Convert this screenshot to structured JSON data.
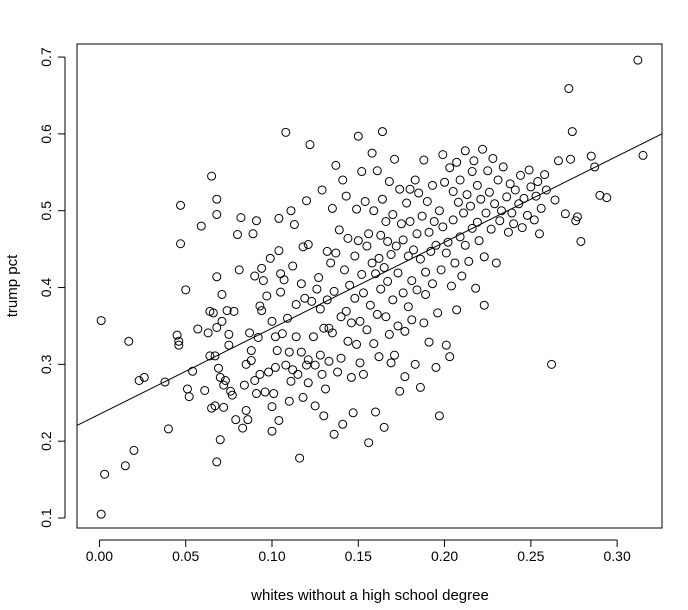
{
  "chart_data": {
    "type": "scatter",
    "title": "",
    "xlabel": "whites without a high school degree",
    "ylabel": "trump pct",
    "xlim": [
      -0.013,
      0.326
    ],
    "ylim": [
      0.087,
      0.717
    ],
    "xticks": [
      "0.00",
      "0.05",
      "0.10",
      "0.15",
      "0.20",
      "0.25",
      "0.30"
    ],
    "yticks": [
      "0.1",
      "0.2",
      "0.3",
      "0.4",
      "0.5",
      "0.6",
      "0.7"
    ],
    "xtick_values": [
      0.0,
      0.05,
      0.1,
      0.15,
      0.2,
      0.25,
      0.3
    ],
    "ytick_values": [
      0.1,
      0.2,
      0.3,
      0.4,
      0.5,
      0.6,
      0.7
    ],
    "grid": false,
    "marker": "open-circle",
    "regression_line": {
      "intercept": 0.235,
      "slope": 1.12
    },
    "points": [
      [
        0.001,
        0.105
      ],
      [
        0.003,
        0.157
      ],
      [
        0.015,
        0.168
      ],
      [
        0.02,
        0.188
      ],
      [
        0.001,
        0.357
      ],
      [
        0.017,
        0.33
      ],
      [
        0.023,
        0.279
      ],
      [
        0.026,
        0.283
      ],
      [
        0.038,
        0.277
      ],
      [
        0.04,
        0.216
      ],
      [
        0.045,
        0.338
      ],
      [
        0.046,
        0.33
      ],
      [
        0.046,
        0.325
      ],
      [
        0.047,
        0.507
      ],
      [
        0.047,
        0.457
      ],
      [
        0.05,
        0.397
      ],
      [
        0.051,
        0.268
      ],
      [
        0.052,
        0.258
      ],
      [
        0.054,
        0.291
      ],
      [
        0.057,
        0.346
      ],
      [
        0.059,
        0.48
      ],
      [
        0.061,
        0.266
      ],
      [
        0.063,
        0.341
      ],
      [
        0.064,
        0.369
      ],
      [
        0.064,
        0.311
      ],
      [
        0.065,
        0.545
      ],
      [
        0.065,
        0.243
      ],
      [
        0.066,
        0.367
      ],
      [
        0.067,
        0.311
      ],
      [
        0.067,
        0.246
      ],
      [
        0.068,
        0.515
      ],
      [
        0.068,
        0.495
      ],
      [
        0.068,
        0.414
      ],
      [
        0.068,
        0.348
      ],
      [
        0.068,
        0.173
      ],
      [
        0.069,
        0.295
      ],
      [
        0.07,
        0.283
      ],
      [
        0.07,
        0.202
      ],
      [
        0.071,
        0.391
      ],
      [
        0.071,
        0.356
      ],
      [
        0.072,
        0.273
      ],
      [
        0.072,
        0.244
      ],
      [
        0.073,
        0.279
      ],
      [
        0.074,
        0.37
      ],
      [
        0.075,
        0.339
      ],
      [
        0.075,
        0.325
      ],
      [
        0.076,
        0.265
      ],
      [
        0.077,
        0.26
      ],
      [
        0.078,
        0.369
      ],
      [
        0.079,
        0.228
      ],
      [
        0.08,
        0.469
      ],
      [
        0.081,
        0.423
      ],
      [
        0.082,
        0.491
      ],
      [
        0.083,
        0.217
      ],
      [
        0.084,
        0.273
      ],
      [
        0.085,
        0.3
      ],
      [
        0.085,
        0.24
      ],
      [
        0.086,
        0.228
      ],
      [
        0.087,
        0.341
      ],
      [
        0.088,
        0.318
      ],
      [
        0.088,
        0.305
      ],
      [
        0.089,
        0.47
      ],
      [
        0.09,
        0.279
      ],
      [
        0.09,
        0.415
      ],
      [
        0.091,
        0.487
      ],
      [
        0.091,
        0.262
      ],
      [
        0.092,
        0.335
      ],
      [
        0.093,
        0.376
      ],
      [
        0.093,
        0.287
      ],
      [
        0.094,
        0.425
      ],
      [
        0.094,
        0.37
      ],
      [
        0.095,
        0.409
      ],
      [
        0.096,
        0.264
      ],
      [
        0.097,
        0.389
      ],
      [
        0.098,
        0.29
      ],
      [
        0.099,
        0.438
      ],
      [
        0.1,
        0.356
      ],
      [
        0.1,
        0.213
      ],
      [
        0.1,
        0.245
      ],
      [
        0.101,
        0.262
      ],
      [
        0.102,
        0.336
      ],
      [
        0.102,
        0.296
      ],
      [
        0.103,
        0.318
      ],
      [
        0.104,
        0.49
      ],
      [
        0.104,
        0.448
      ],
      [
        0.104,
        0.227
      ],
      [
        0.105,
        0.418
      ],
      [
        0.105,
        0.394
      ],
      [
        0.106,
        0.34
      ],
      [
        0.107,
        0.41
      ],
      [
        0.108,
        0.299
      ],
      [
        0.108,
        0.602
      ],
      [
        0.109,
        0.36
      ],
      [
        0.11,
        0.316
      ],
      [
        0.11,
        0.252
      ],
      [
        0.111,
        0.5
      ],
      [
        0.111,
        0.278
      ],
      [
        0.112,
        0.428
      ],
      [
        0.112,
        0.293
      ],
      [
        0.113,
        0.482
      ],
      [
        0.114,
        0.378
      ],
      [
        0.114,
        0.336
      ],
      [
        0.115,
        0.287
      ],
      [
        0.116,
        0.178
      ],
      [
        0.117,
        0.405
      ],
      [
        0.117,
        0.316
      ],
      [
        0.118,
        0.453
      ],
      [
        0.118,
        0.257
      ],
      [
        0.119,
        0.386
      ],
      [
        0.12,
        0.299
      ],
      [
        0.12,
        0.513
      ],
      [
        0.121,
        0.306
      ],
      [
        0.121,
        0.276
      ],
      [
        0.121,
        0.456
      ],
      [
        0.122,
        0.586
      ],
      [
        0.123,
        0.382
      ],
      [
        0.124,
        0.336
      ],
      [
        0.125,
        0.299
      ],
      [
        0.125,
        0.246
      ],
      [
        0.126,
        0.398
      ],
      [
        0.127,
        0.413
      ],
      [
        0.128,
        0.372
      ],
      [
        0.128,
        0.312
      ],
      [
        0.129,
        0.527
      ],
      [
        0.129,
        0.287
      ],
      [
        0.13,
        0.347
      ],
      [
        0.13,
        0.233
      ],
      [
        0.131,
        0.268
      ],
      [
        0.132,
        0.447
      ],
      [
        0.132,
        0.384
      ],
      [
        0.133,
        0.347
      ],
      [
        0.133,
        0.304
      ],
      [
        0.134,
        0.432
      ],
      [
        0.135,
        0.503
      ],
      [
        0.135,
        0.341
      ],
      [
        0.136,
        0.395
      ],
      [
        0.136,
        0.209
      ],
      [
        0.137,
        0.559
      ],
      [
        0.137,
        0.445
      ],
      [
        0.138,
        0.29
      ],
      [
        0.139,
        0.475
      ],
      [
        0.14,
        0.362
      ],
      [
        0.14,
        0.308
      ],
      [
        0.141,
        0.222
      ],
      [
        0.141,
        0.54
      ],
      [
        0.142,
        0.423
      ],
      [
        0.143,
        0.519
      ],
      [
        0.143,
        0.369
      ],
      [
        0.144,
        0.33
      ],
      [
        0.144,
        0.464
      ],
      [
        0.145,
        0.403
      ],
      [
        0.146,
        0.354
      ],
      [
        0.146,
        0.283
      ],
      [
        0.147,
        0.237
      ],
      [
        0.148,
        0.441
      ],
      [
        0.148,
        0.386
      ],
      [
        0.149,
        0.502
      ],
      [
        0.149,
        0.326
      ],
      [
        0.15,
        0.461
      ],
      [
        0.15,
        0.597
      ],
      [
        0.151,
        0.302
      ],
      [
        0.151,
        0.356
      ],
      [
        0.152,
        0.417
      ],
      [
        0.152,
        0.551
      ],
      [
        0.153,
        0.393
      ],
      [
        0.153,
        0.287
      ],
      [
        0.154,
        0.512
      ],
      [
        0.155,
        0.345
      ],
      [
        0.155,
        0.454
      ],
      [
        0.156,
        0.198
      ],
      [
        0.156,
        0.47
      ],
      [
        0.157,
        0.377
      ],
      [
        0.158,
        0.575
      ],
      [
        0.158,
        0.432
      ],
      [
        0.159,
        0.327
      ],
      [
        0.159,
        0.5
      ],
      [
        0.16,
        0.238
      ],
      [
        0.16,
        0.418
      ],
      [
        0.161,
        0.552
      ],
      [
        0.161,
        0.365
      ],
      [
        0.162,
        0.438
      ],
      [
        0.162,
        0.31
      ],
      [
        0.163,
        0.468
      ],
      [
        0.163,
        0.398
      ],
      [
        0.164,
        0.603
      ],
      [
        0.164,
        0.515
      ],
      [
        0.165,
        0.426
      ],
      [
        0.165,
        0.218
      ],
      [
        0.166,
        0.486
      ],
      [
        0.166,
        0.362
      ],
      [
        0.167,
        0.46
      ],
      [
        0.167,
        0.408
      ],
      [
        0.168,
        0.538
      ],
      [
        0.168,
        0.339
      ],
      [
        0.169,
        0.443
      ],
      [
        0.169,
        0.302
      ],
      [
        0.17,
        0.495
      ],
      [
        0.17,
        0.384
      ],
      [
        0.171,
        0.567
      ],
      [
        0.171,
        0.312
      ],
      [
        0.172,
        0.454
      ],
      [
        0.173,
        0.419
      ],
      [
        0.173,
        0.35
      ],
      [
        0.174,
        0.528
      ],
      [
        0.174,
        0.265
      ],
      [
        0.175,
        0.483
      ],
      [
        0.176,
        0.393
      ],
      [
        0.176,
        0.462
      ],
      [
        0.177,
        0.343
      ],
      [
        0.177,
        0.284
      ],
      [
        0.178,
        0.51
      ],
      [
        0.179,
        0.441
      ],
      [
        0.179,
        0.375
      ],
      [
        0.18,
        0.528
      ],
      [
        0.18,
        0.486
      ],
      [
        0.181,
        0.409
      ],
      [
        0.181,
        0.358
      ],
      [
        0.182,
        0.449
      ],
      [
        0.183,
        0.54
      ],
      [
        0.183,
        0.3
      ],
      [
        0.184,
        0.47
      ],
      [
        0.184,
        0.397
      ],
      [
        0.185,
        0.523
      ],
      [
        0.186,
        0.437
      ],
      [
        0.186,
        0.27
      ],
      [
        0.187,
        0.493
      ],
      [
        0.188,
        0.354
      ],
      [
        0.188,
        0.566
      ],
      [
        0.189,
        0.42
      ],
      [
        0.189,
        0.391
      ],
      [
        0.19,
        0.512
      ],
      [
        0.191,
        0.472
      ],
      [
        0.191,
        0.329
      ],
      [
        0.192,
        0.447
      ],
      [
        0.193,
        0.405
      ],
      [
        0.193,
        0.533
      ],
      [
        0.194,
        0.486
      ],
      [
        0.195,
        0.296
      ],
      [
        0.195,
        0.455
      ],
      [
        0.196,
        0.367
      ],
      [
        0.197,
        0.233
      ],
      [
        0.197,
        0.5
      ],
      [
        0.198,
        0.423
      ],
      [
        0.199,
        0.479
      ],
      [
        0.199,
        0.573
      ],
      [
        0.2,
        0.537
      ],
      [
        0.201,
        0.325
      ],
      [
        0.201,
        0.445
      ],
      [
        0.202,
        0.459
      ],
      [
        0.203,
        0.31
      ],
      [
        0.203,
        0.556
      ],
      [
        0.204,
        0.402
      ],
      [
        0.205,
        0.488
      ],
      [
        0.205,
        0.525
      ],
      [
        0.206,
        0.432
      ],
      [
        0.207,
        0.371
      ],
      [
        0.207,
        0.563
      ],
      [
        0.208,
        0.511
      ],
      [
        0.209,
        0.466
      ],
      [
        0.209,
        0.54
      ],
      [
        0.21,
        0.415
      ],
      [
        0.211,
        0.497
      ],
      [
        0.212,
        0.578
      ],
      [
        0.212,
        0.455
      ],
      [
        0.213,
        0.521
      ],
      [
        0.214,
        0.434
      ],
      [
        0.215,
        0.506
      ],
      [
        0.216,
        0.551
      ],
      [
        0.216,
        0.477
      ],
      [
        0.217,
        0.565
      ],
      [
        0.218,
        0.399
      ],
      [
        0.219,
        0.485
      ],
      [
        0.219,
        0.533
      ],
      [
        0.22,
        0.461
      ],
      [
        0.221,
        0.515
      ],
      [
        0.222,
        0.58
      ],
      [
        0.223,
        0.44
      ],
      [
        0.223,
        0.377
      ],
      [
        0.224,
        0.497
      ],
      [
        0.225,
        0.552
      ],
      [
        0.226,
        0.524
      ],
      [
        0.227,
        0.476
      ],
      [
        0.228,
        0.568
      ],
      [
        0.229,
        0.509
      ],
      [
        0.23,
        0.432
      ],
      [
        0.231,
        0.54
      ],
      [
        0.232,
        0.487
      ],
      [
        0.233,
        0.5
      ],
      [
        0.234,
        0.557
      ],
      [
        0.236,
        0.518
      ],
      [
        0.237,
        0.472
      ],
      [
        0.238,
        0.535
      ],
      [
        0.239,
        0.497
      ],
      [
        0.24,
        0.483
      ],
      [
        0.241,
        0.527
      ],
      [
        0.243,
        0.509
      ],
      [
        0.244,
        0.546
      ],
      [
        0.245,
        0.478
      ],
      [
        0.246,
        0.516
      ],
      [
        0.248,
        0.494
      ],
      [
        0.249,
        0.553
      ],
      [
        0.25,
        0.531
      ],
      [
        0.252,
        0.488
      ],
      [
        0.253,
        0.519
      ],
      [
        0.254,
        0.538
      ],
      [
        0.255,
        0.47
      ],
      [
        0.256,
        0.503
      ],
      [
        0.258,
        0.547
      ],
      [
        0.259,
        0.527
      ],
      [
        0.262,
        0.3
      ],
      [
        0.264,
        0.514
      ],
      [
        0.266,
        0.565
      ],
      [
        0.27,
        0.496
      ],
      [
        0.272,
        0.659
      ],
      [
        0.273,
        0.567
      ],
      [
        0.274,
        0.603
      ],
      [
        0.276,
        0.487
      ],
      [
        0.277,
        0.492
      ],
      [
        0.279,
        0.46
      ],
      [
        0.285,
        0.571
      ],
      [
        0.287,
        0.557
      ],
      [
        0.29,
        0.52
      ],
      [
        0.294,
        0.517
      ],
      [
        0.312,
        0.696
      ],
      [
        0.315,
        0.572
      ]
    ]
  }
}
